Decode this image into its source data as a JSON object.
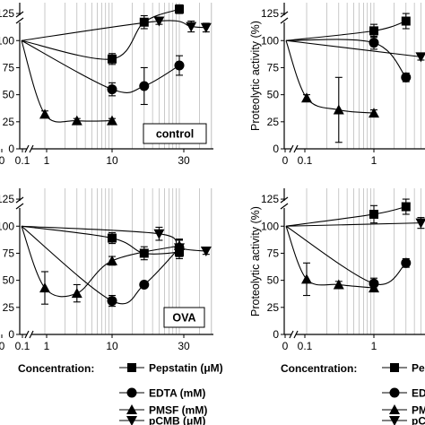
{
  "chart_data": [
    {
      "type": "scatter",
      "panel": "top-left",
      "ylabel": "",
      "box_label": "control",
      "x_ticks": [
        "0",
        "0.1",
        "1",
        "10",
        "30"
      ],
      "y_ticks": [
        "125",
        "100",
        "75",
        "50",
        "25",
        "0"
      ],
      "y_tick_values": [
        125,
        100,
        75,
        50,
        25,
        0
      ],
      "ylim": [
        0,
        135
      ],
      "x_scale": "broken-log",
      "grid": "vertical minor lines",
      "series": [
        {
          "name": "Pepstatin",
          "marker": "square",
          "x": [
            0,
            1,
            3,
            10
          ],
          "y": [
            100,
            83,
            117,
            129
          ],
          "err": [
            0,
            5,
            6,
            4
          ]
        },
        {
          "name": "EDTA",
          "marker": "circle",
          "x": [
            0,
            1,
            3,
            10
          ],
          "y": [
            100,
            55,
            58,
            77
          ],
          "err": [
            0,
            6,
            17,
            9
          ]
        },
        {
          "name": "PMSF",
          "marker": "triangle-up",
          "x": [
            0,
            0.1,
            0.3,
            1
          ],
          "y": [
            100,
            32,
            26,
            26
          ],
          "err": [
            0,
            3,
            2,
            2
          ]
        },
        {
          "name": "pCMB",
          "marker": "triangle-down",
          "x": [
            0,
            5,
            15,
            25
          ],
          "y": [
            100,
            118,
            113,
            112
          ],
          "err": [
            0,
            3,
            5,
            4
          ]
        }
      ]
    },
    {
      "type": "scatter",
      "panel": "top-right",
      "ylabel": "Proteolytic activity (%)",
      "box_label": "",
      "x_ticks": [
        "0",
        "0.1",
        "1"
      ],
      "y_ticks": [
        "125",
        "100",
        "75",
        "50",
        "25",
        "0"
      ],
      "y_tick_values": [
        125,
        100,
        75,
        50,
        25,
        0
      ],
      "ylim": [
        0,
        135
      ],
      "x_scale": "broken-log",
      "grid": "vertical minor lines",
      "series": [
        {
          "name": "Pepstatin",
          "marker": "square",
          "x": [
            0,
            1,
            3
          ],
          "y": [
            100,
            109,
            118
          ],
          "err": [
            0,
            6,
            7
          ]
        },
        {
          "name": "EDTA",
          "marker": "circle",
          "x": [
            0,
            1,
            3
          ],
          "y": [
            100,
            98,
            66
          ],
          "err": [
            0,
            6,
            4
          ]
        },
        {
          "name": "PMSF",
          "marker": "triangle-up",
          "x": [
            0,
            0.1,
            0.3,
            1
          ],
          "y": [
            100,
            47,
            36,
            33
          ],
          "err": [
            0,
            3,
            30,
            3
          ]
        },
        {
          "name": "pCMB",
          "marker": "triangle-down",
          "x": [
            0,
            5
          ],
          "y": [
            100,
            85
          ],
          "err": [
            0,
            3
          ]
        }
      ]
    },
    {
      "type": "scatter",
      "panel": "bottom-left",
      "ylabel": "",
      "box_label": "OVA",
      "x_ticks": [
        "0",
        "0.1",
        "1",
        "10",
        "30"
      ],
      "y_ticks": [
        "125",
        "100",
        "75",
        "50",
        "25",
        "0"
      ],
      "y_tick_values": [
        125,
        100,
        75,
        50,
        25,
        0
      ],
      "ylim": [
        0,
        135
      ],
      "x_scale": "broken-log",
      "grid": "vertical minor lines",
      "series": [
        {
          "name": "Pepstatin",
          "marker": "square",
          "x": [
            0,
            1,
            3,
            10
          ],
          "y": [
            100,
            89,
            75,
            76
          ],
          "err": [
            0,
            5,
            6,
            6
          ]
        },
        {
          "name": "EDTA",
          "marker": "circle",
          "x": [
            0,
            1,
            3,
            10
          ],
          "y": [
            100,
            31,
            46,
            80
          ],
          "err": [
            0,
            5,
            2,
            8
          ]
        },
        {
          "name": "PMSF",
          "marker": "triangle-up",
          "x": [
            0,
            0.1,
            0.3,
            1,
            10
          ],
          "y": [
            100,
            43,
            38,
            68,
            82
          ],
          "err": [
            0,
            15,
            8,
            4,
            5
          ]
        },
        {
          "name": "pCMB",
          "marker": "triangle-down",
          "x": [
            0,
            5,
            10,
            25
          ],
          "y": [
            100,
            93,
            80,
            77
          ],
          "err": [
            0,
            6,
            8,
            3
          ]
        }
      ]
    },
    {
      "type": "scatter",
      "panel": "bottom-right",
      "ylabel": "Proteolytic activity (%)",
      "box_label": "",
      "x_ticks": [
        "0",
        "0.1",
        "1"
      ],
      "y_ticks": [
        "125",
        "100",
        "75",
        "50",
        "25",
        "0"
      ],
      "y_tick_values": [
        125,
        100,
        75,
        50,
        25,
        0
      ],
      "ylim": [
        0,
        135
      ],
      "x_scale": "broken-log",
      "grid": "vertical minor lines",
      "series": [
        {
          "name": "Pepstatin",
          "marker": "square",
          "x": [
            0,
            1,
            3
          ],
          "y": [
            100,
            111,
            118
          ],
          "err": [
            0,
            8,
            7
          ]
        },
        {
          "name": "EDTA",
          "marker": "circle",
          "x": [
            0,
            1,
            3
          ],
          "y": [
            100,
            47,
            66
          ],
          "err": [
            0,
            5,
            4
          ]
        },
        {
          "name": "PMSF",
          "marker": "triangle-up",
          "x": [
            0,
            0.1,
            0.3,
            1
          ],
          "y": [
            100,
            51,
            46,
            43
          ],
          "err": [
            0,
            15,
            3,
            3
          ]
        },
        {
          "name": "pCMB",
          "marker": "triangle-down",
          "x": [
            0,
            5
          ],
          "y": [
            100,
            103
          ],
          "err": [
            0,
            5
          ]
        }
      ]
    }
  ],
  "legend_left": {
    "title": "Concentration:",
    "items": [
      {
        "marker": "square",
        "label": "Pepstatin (μM)"
      },
      {
        "marker": "circle",
        "label": "EDTA (mM)"
      },
      {
        "marker": "triangle-up",
        "label": "PMSF (mM)"
      },
      {
        "marker": "triangle-down",
        "label": "pCMB (μM)"
      }
    ]
  },
  "legend_right": {
    "title": "Concentration:",
    "items": [
      {
        "marker": "square",
        "label": "Peps"
      },
      {
        "marker": "circle",
        "label": "EDTA"
      },
      {
        "marker": "triangle-up",
        "label": "PMSF"
      },
      {
        "marker": "triangle-down",
        "label": "pCMB"
      }
    ]
  },
  "colors": {
    "ink": "#000000",
    "grid": "#b4b4b4",
    "background": "#ffffff"
  }
}
